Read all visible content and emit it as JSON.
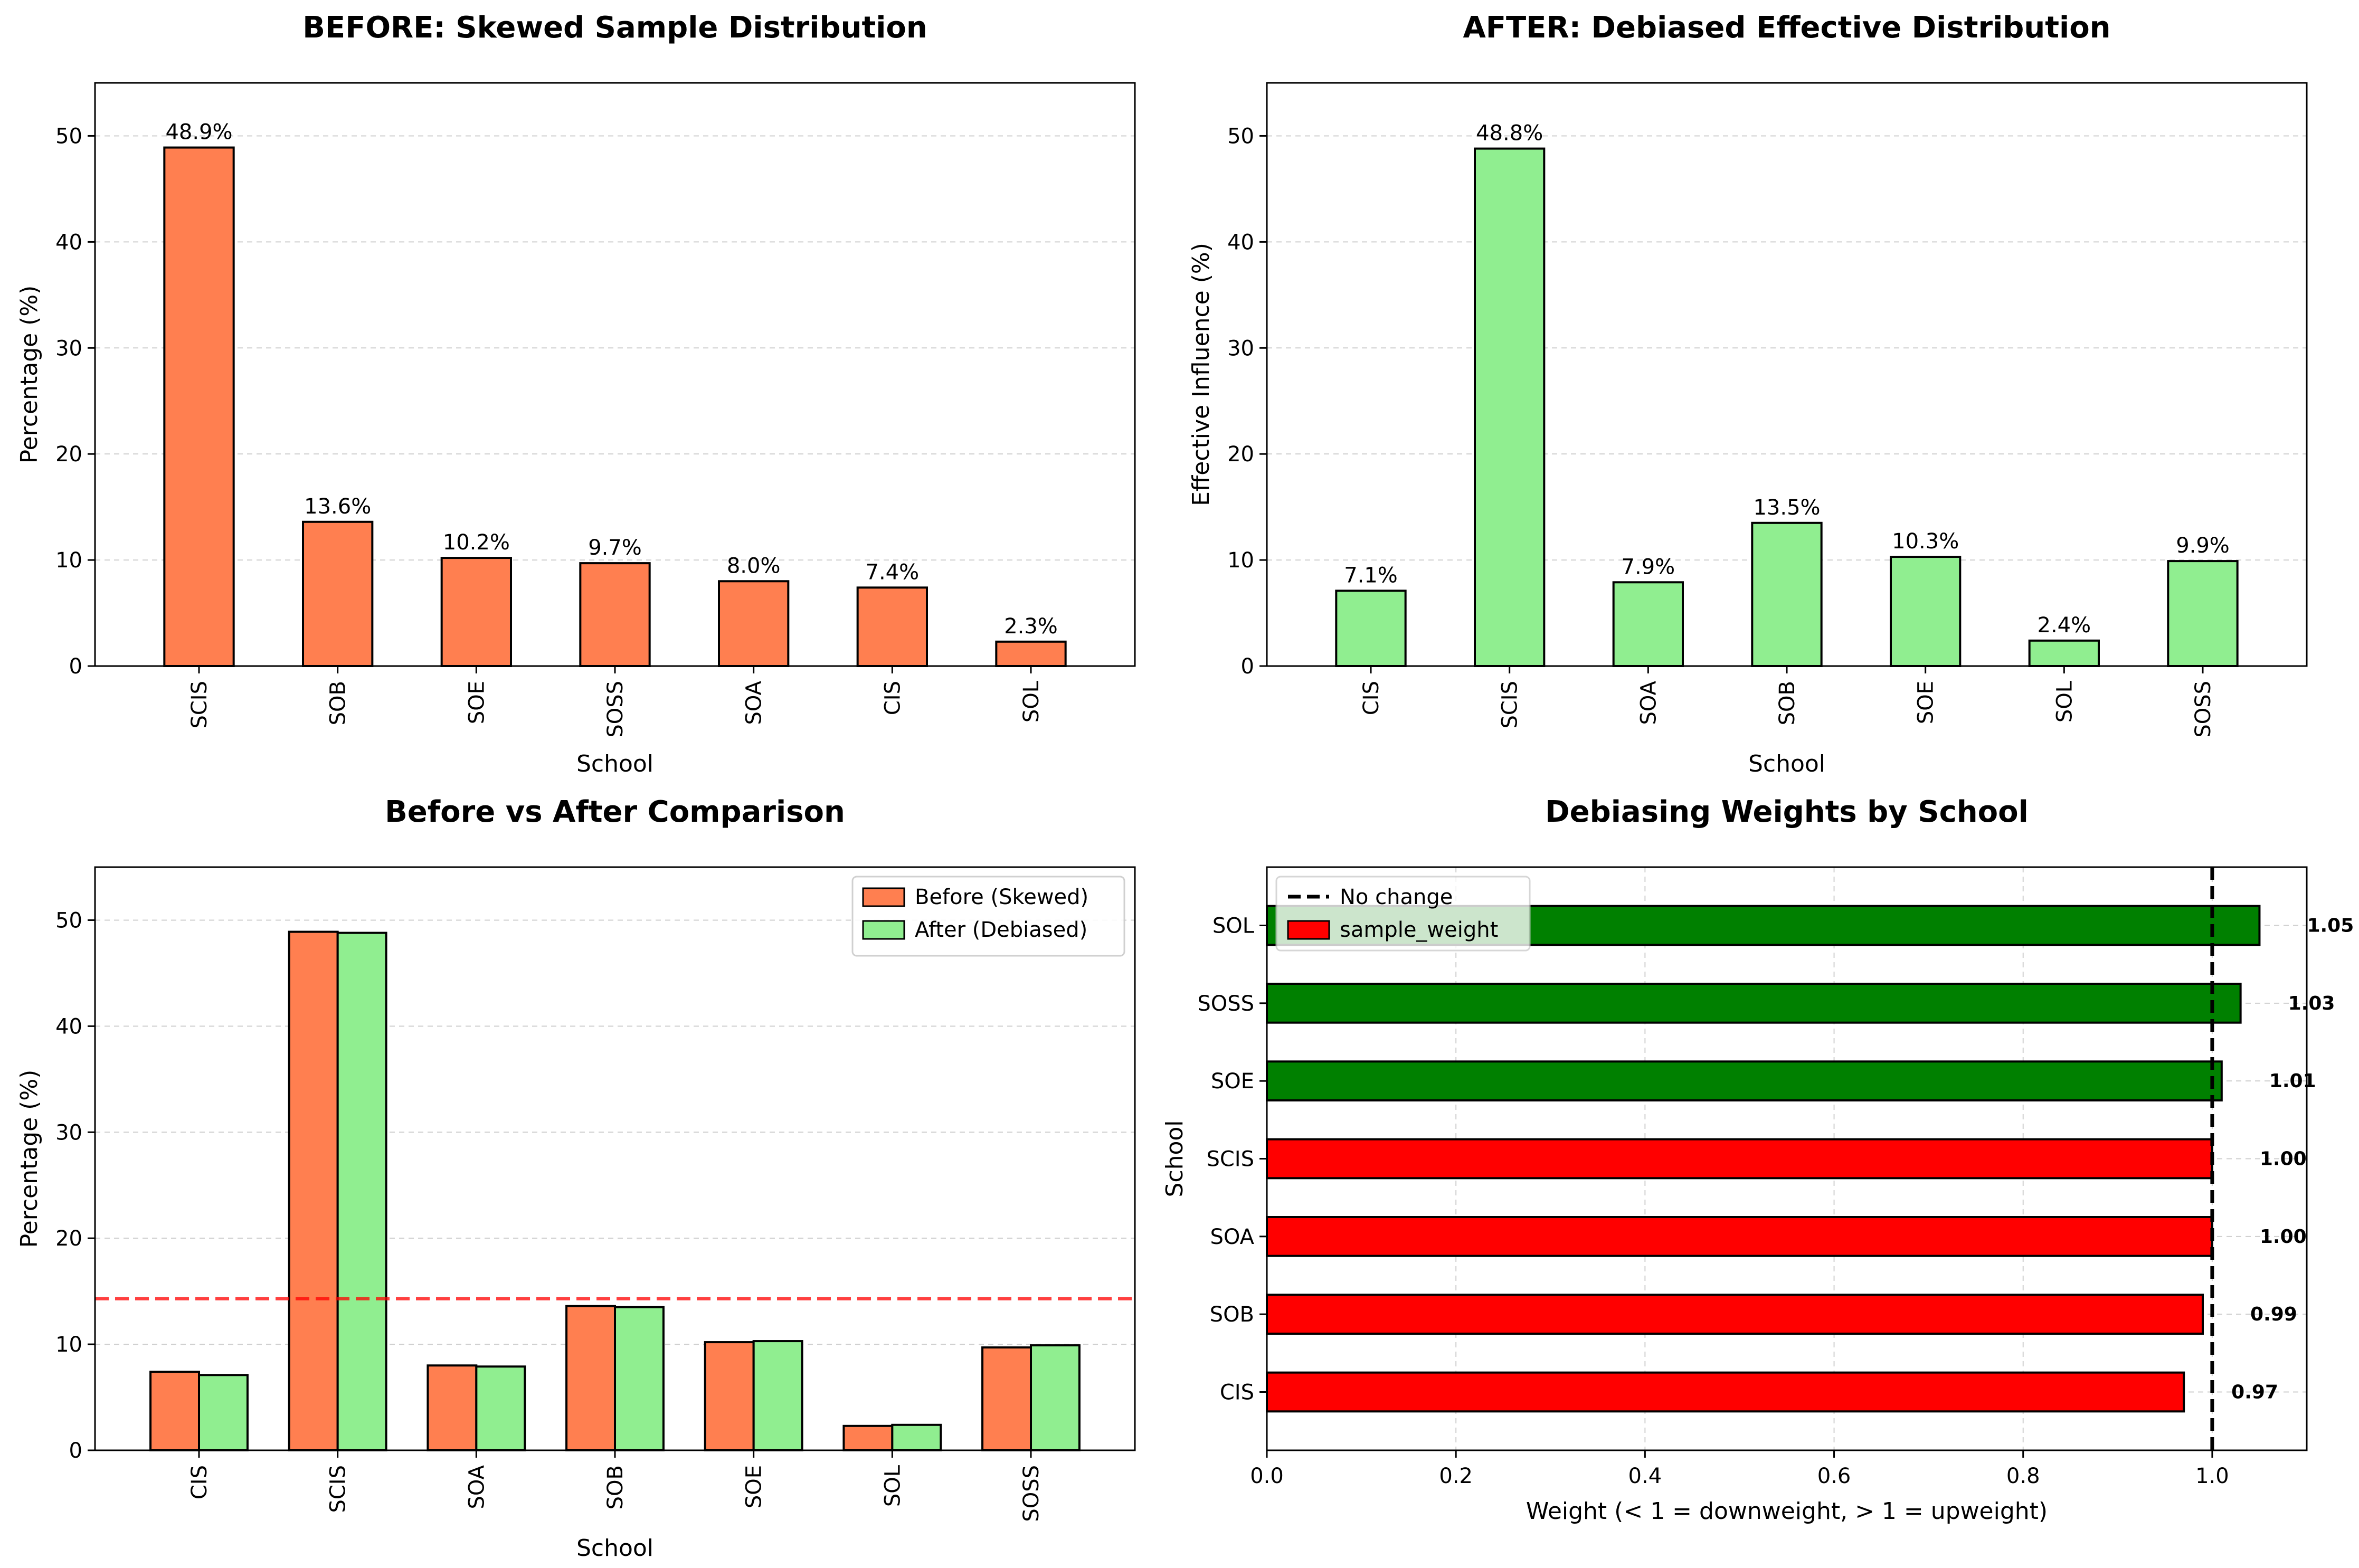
{
  "chart_data": [
    {
      "type": "bar",
      "title": "BEFORE: Skewed Sample Distribution",
      "xlabel": "School",
      "ylabel": "Percentage (%)",
      "categories": [
        "SCIS",
        "SOB",
        "SOE",
        "SOSS",
        "SOA",
        "CIS",
        "SOL"
      ],
      "values": [
        48.9,
        13.6,
        10.2,
        9.7,
        8.0,
        7.4,
        2.3
      ],
      "data_labels": [
        "48.9%",
        "13.6%",
        "10.2%",
        "9.7%",
        "8.0%",
        "7.4%",
        "2.3%"
      ],
      "yticks": [
        0,
        10,
        20,
        30,
        40,
        50
      ],
      "ylim": [
        0,
        55
      ],
      "color": "#ff7f50",
      "grid": "y-dashed"
    },
    {
      "type": "bar",
      "title": "AFTER: Debiased Effective Distribution",
      "xlabel": "School",
      "ylabel": "Effective Influence (%)",
      "categories": [
        "CIS",
        "SCIS",
        "SOA",
        "SOB",
        "SOE",
        "SOL",
        "SOSS"
      ],
      "values": [
        7.1,
        48.8,
        7.9,
        13.5,
        10.3,
        2.4,
        9.9
      ],
      "data_labels": [
        "7.1%",
        "48.8%",
        "7.9%",
        "13.5%",
        "10.3%",
        "2.4%",
        "9.9%"
      ],
      "yticks": [
        0,
        10,
        20,
        30,
        40,
        50
      ],
      "ylim": [
        0,
        55
      ],
      "color": "#90ee90",
      "grid": "y-dashed"
    },
    {
      "type": "bar",
      "title": "Before vs After Comparison",
      "xlabel": "School",
      "ylabel": "Percentage (%)",
      "categories": [
        "CIS",
        "SCIS",
        "SOA",
        "SOB",
        "SOE",
        "SOL",
        "SOSS"
      ],
      "series": [
        {
          "name": "Before (Skewed)",
          "color": "#ff7f50",
          "values": [
            7.4,
            48.9,
            8.0,
            13.6,
            10.2,
            2.3,
            9.7
          ]
        },
        {
          "name": "After (Debiased)",
          "color": "#90ee90",
          "values": [
            7.1,
            48.8,
            7.9,
            13.5,
            10.3,
            2.4,
            9.9
          ]
        }
      ],
      "reference_line": {
        "y": 14.29,
        "color": "#ff0000",
        "style": "dashed"
      },
      "yticks": [
        0,
        10,
        20,
        30,
        40,
        50
      ],
      "ylim": [
        0,
        55
      ],
      "legend": "top-right",
      "grid": "y-dashed"
    },
    {
      "type": "bar",
      "orientation": "horizontal",
      "title": "Debiasing Weights by School",
      "xlabel": "Weight (< 1 = downweight, > 1 = upweight)",
      "ylabel": "School",
      "categories": [
        "CIS",
        "SOB",
        "SOA",
        "SCIS",
        "SOE",
        "SOSS",
        "SOL"
      ],
      "values": [
        0.97,
        0.99,
        1.0,
        1.0,
        1.01,
        1.03,
        1.05
      ],
      "data_labels": [
        "0.97",
        "0.99",
        "1.00",
        "1.00",
        "1.01",
        "1.03",
        "1.05"
      ],
      "colors": [
        "#ff0000",
        "#ff0000",
        "#ff0000",
        "#ff0000",
        "#008000",
        "#008000",
        "#008000"
      ],
      "xticks": [
        0.0,
        0.2,
        0.4,
        0.6,
        0.8,
        1.0
      ],
      "xtick_labels": [
        "0.0",
        "0.2",
        "0.4",
        "0.6",
        "0.8",
        "1.0"
      ],
      "xlim": [
        0,
        1.1
      ],
      "reference_line": {
        "x": 1.0,
        "name": "No change",
        "color": "#000000",
        "style": "dashed"
      },
      "legend_entries": [
        "No change",
        "sample_weight"
      ],
      "legend": "top-left",
      "grid": "both-dashed"
    }
  ]
}
